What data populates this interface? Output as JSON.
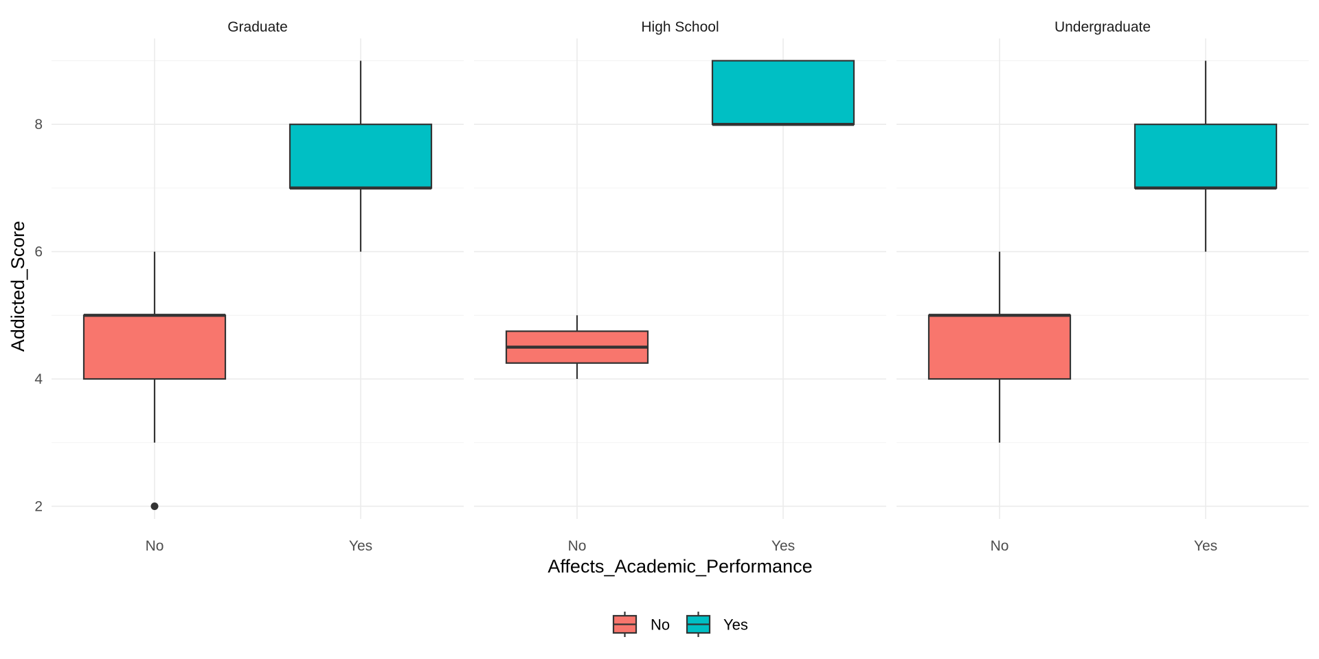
{
  "chart_data": {
    "type": "boxplot",
    "xlabel": "Affects_Academic_Performance",
    "ylabel": "Addicted_Score",
    "ylim": [
      1.8,
      9.35
    ],
    "y_ticks": [
      2,
      4,
      6,
      8
    ],
    "categories": [
      "No",
      "Yes"
    ],
    "legend": {
      "position": "bottom",
      "entries": [
        {
          "label": "No",
          "color": "#F8766D"
        },
        {
          "label": "Yes",
          "color": "#00BFC4"
        }
      ]
    },
    "panels": [
      {
        "name": "Graduate",
        "boxes": [
          {
            "category": "No",
            "min": 3,
            "q1": 4,
            "median": 5,
            "q3": 5,
            "max": 6,
            "outliers": [
              2
            ]
          },
          {
            "category": "Yes",
            "min": 6,
            "q1": 7,
            "median": 7,
            "q3": 8,
            "max": 9,
            "outliers": []
          }
        ]
      },
      {
        "name": "High School",
        "boxes": [
          {
            "category": "No",
            "min": 4,
            "q1": 4.25,
            "median": 4.5,
            "q3": 4.75,
            "max": 5,
            "outliers": []
          },
          {
            "category": "Yes",
            "min": 8,
            "q1": 8,
            "median": 8,
            "q3": 9,
            "max": 9,
            "outliers": []
          }
        ]
      },
      {
        "name": "Undergraduate",
        "boxes": [
          {
            "category": "No",
            "min": 3,
            "q1": 4,
            "median": 5,
            "q3": 5,
            "max": 6,
            "outliers": []
          },
          {
            "category": "Yes",
            "min": 6,
            "q1": 7,
            "median": 7,
            "q3": 8,
            "max": 9,
            "outliers": []
          }
        ]
      }
    ]
  }
}
